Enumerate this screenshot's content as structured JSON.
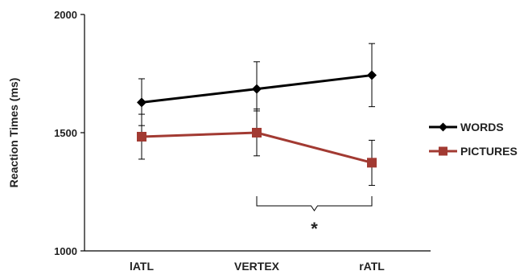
{
  "chart_data": {
    "type": "line",
    "categories": [
      "lATL",
      "VERTEX",
      "rATL"
    ],
    "ylabel": "Reaction Times (ms)",
    "xlabel": "",
    "ylim": [
      1000,
      2000
    ],
    "yticks": [
      "1000",
      "1500",
      "2000"
    ],
    "grid": false,
    "legend_position": "right",
    "series": [
      {
        "name": "WORDS",
        "color": "#000000",
        "marker": "diamond",
        "values": [
          1628,
          1685,
          1743
        ],
        "error": [
          [
            1530,
            1728
          ],
          [
            1592,
            1800
          ],
          [
            1610,
            1877
          ]
        ]
      },
      {
        "name": "PICTURES",
        "color": "#a23a32",
        "marker": "square",
        "values": [
          1483,
          1500,
          1373
        ],
        "error": [
          [
            1388,
            1578
          ],
          [
            1402,
            1600
          ],
          [
            1277,
            1468
          ]
        ]
      }
    ],
    "annotations": [
      {
        "text": "*",
        "between": [
          "VERTEX",
          "rATL"
        ]
      }
    ]
  }
}
